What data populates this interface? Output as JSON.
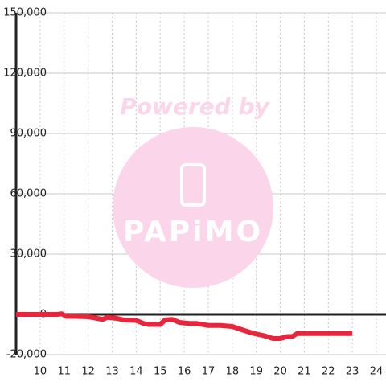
{
  "chart_data": {
    "type": "line",
    "watermark": {
      "title": "Powered by",
      "brand": "PAPiMO"
    },
    "x": [
      9,
      10,
      10.7,
      10.9,
      11.1,
      11.5,
      12,
      12.3,
      12.6,
      12.8,
      13.2,
      13.5,
      14,
      14.3,
      14.5,
      15,
      15.2,
      15.5,
      15.8,
      16.2,
      16.5,
      17,
      17.5,
      18,
      18.5,
      18.9,
      19.3,
      19.7,
      20,
      20.3,
      20.5,
      20.7,
      21,
      23
    ],
    "series": [
      {
        "color": "#e8253a",
        "values": [
          0,
          0,
          0,
          300,
          -1000,
          -1000,
          -1200,
          -1800,
          -2500,
          -1500,
          -2000,
          -2800,
          -3000,
          -4500,
          -5000,
          -5000,
          -2800,
          -2500,
          -4000,
          -4500,
          -4500,
          -5500,
          -5500,
          -6000,
          -8000,
          -9500,
          -10500,
          -12000,
          -12000,
          -11000,
          -11000,
          -9500,
          -9500,
          -9500
        ]
      }
    ],
    "xlim": [
      9,
      24.4
    ],
    "xticks": [
      10,
      11,
      12,
      13,
      14,
      15,
      16,
      17,
      18,
      19,
      20,
      21,
      22,
      23,
      24
    ],
    "ylim": [
      -20000,
      150000
    ],
    "yticks": [
      {
        "value": -20000,
        "label": "-20,000"
      },
      0,
      {
        "value": 30000,
        "label": "30,000"
      },
      {
        "value": 60000,
        "label": "60,000"
      },
      {
        "value": 90000,
        "label": "90,000"
      },
      {
        "value": 120000,
        "label": "120,000"
      },
      {
        "value": 150000,
        "label": "150,000"
      }
    ],
    "grid": true
  }
}
